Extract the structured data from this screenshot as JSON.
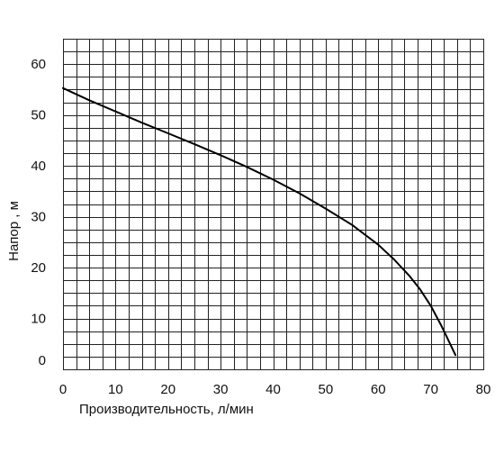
{
  "chart_data": {
    "type": "line",
    "title": "",
    "xlabel": "Производительность, л/мин",
    "ylabel": "Напор , м",
    "xlim": [
      0,
      80
    ],
    "ylim": [
      0,
      65
    ],
    "x_ticks": [
      0,
      10,
      20,
      30,
      40,
      50,
      60,
      70,
      80
    ],
    "y_ticks": [
      0,
      10,
      20,
      30,
      40,
      50,
      60
    ],
    "grid": true,
    "grid_x_step": 2.5,
    "grid_y_step": 2.5,
    "series": [
      {
        "x": [
          0,
          5,
          10,
          15,
          20,
          25,
          30,
          35,
          40,
          45,
          50,
          55,
          60,
          63,
          66,
          68,
          70,
          72,
          73,
          74,
          74.7
        ],
        "y": [
          55.3,
          52.9,
          50.7,
          48.5,
          46.4,
          44.3,
          42.1,
          39.8,
          37.3,
          34.6,
          31.6,
          28.4,
          24.5,
          21.6,
          18.3,
          15.7,
          12.5,
          8.6,
          6.5,
          4.3,
          2.8
        ]
      }
    ],
    "colors": {
      "curve": "#000000",
      "grid": "#222222"
    }
  }
}
